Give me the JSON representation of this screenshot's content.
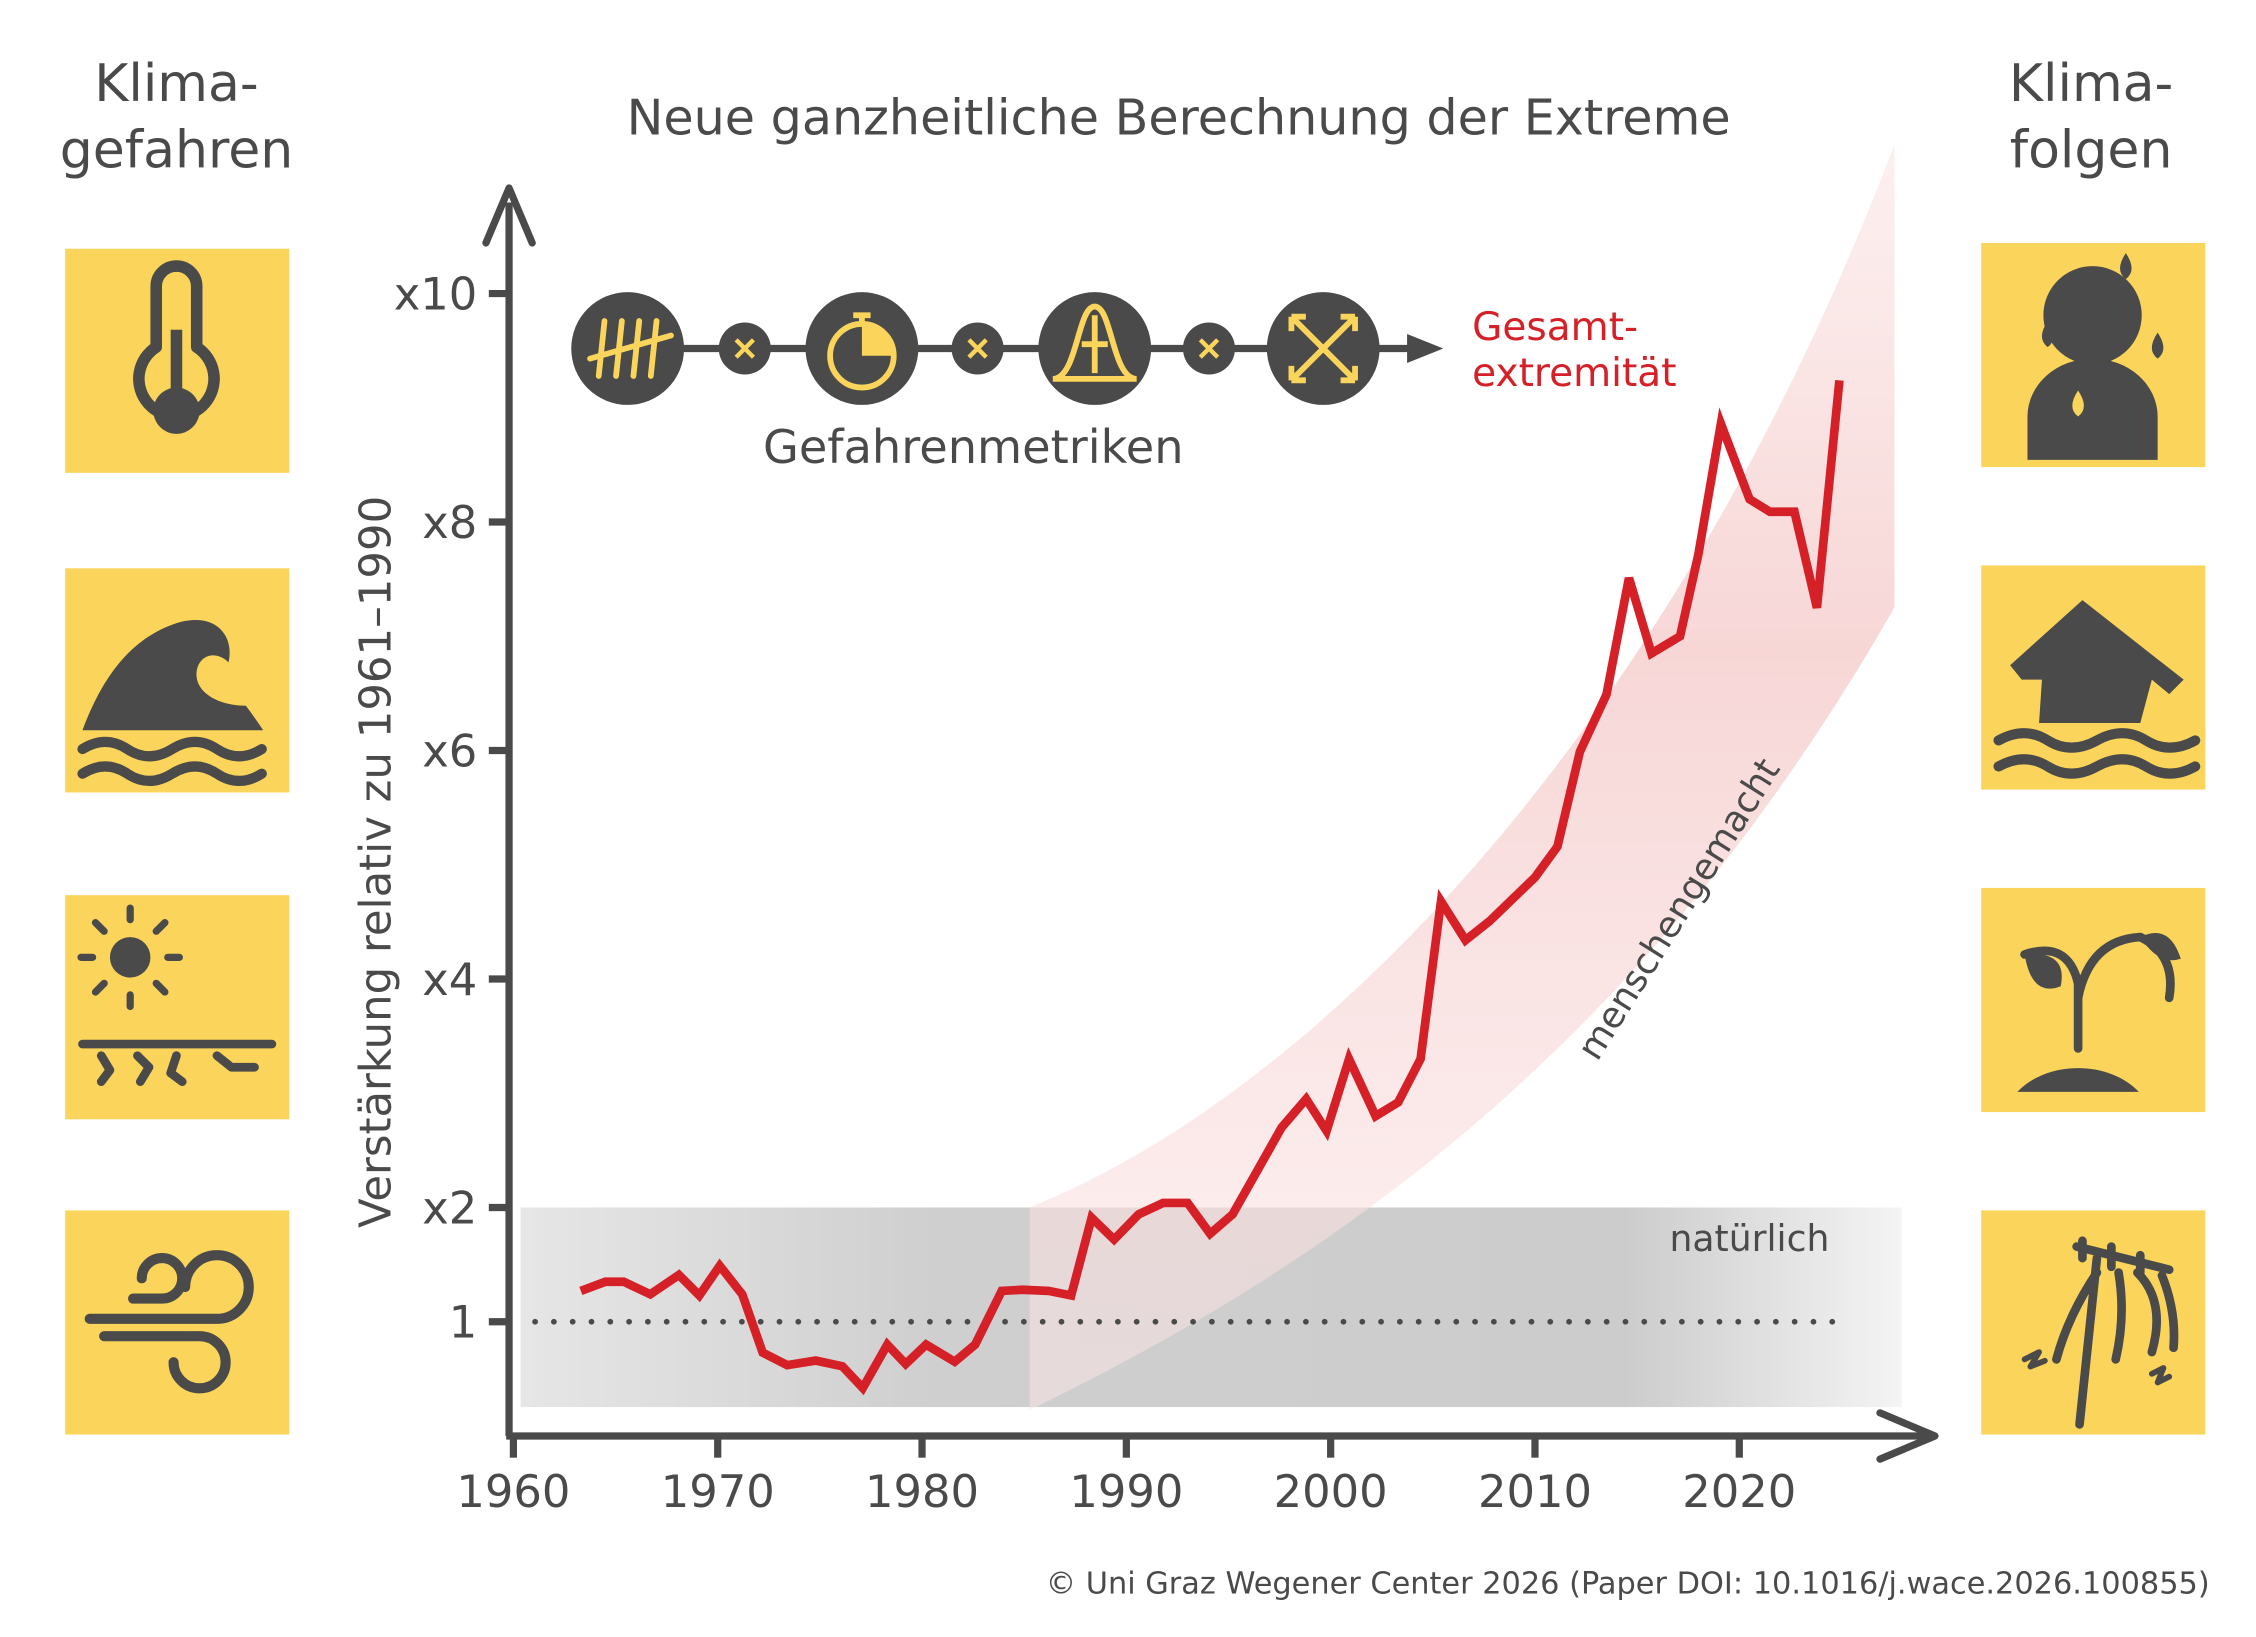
{
  "header": {
    "left_title": [
      "Klima-",
      "gefahren"
    ],
    "right_title": [
      "Klima-",
      "folgen"
    ]
  },
  "chart_data": {
    "type": "line",
    "title": "Neue ganzheitliche Berechnung der Extreme",
    "y_label": "Verstärkung relativ zu 1961–1990",
    "metrics_label": "Gefahrenmetriken",
    "result_label": [
      "Gesamt-",
      "extremität"
    ],
    "band_labels": {
      "natural": "natürlich",
      "human": "menschengemacht"
    },
    "x": [
      1963.3,
      1964.5,
      1965.4,
      1966.7,
      1968.1,
      1969.1,
      1970.1,
      1971.2,
      1972.2,
      1973.4,
      1974.8,
      1976.1,
      1977.1,
      1978.3,
      1979.2,
      1980.2,
      1981.6,
      1982.6,
      1983.9,
      1984.9,
      1986.2,
      1987.3,
      1988.3,
      1989.4,
      1990.6,
      1991.8,
      1993.0,
      1994.1,
      1995.2,
      1996.4,
      1997.6,
      1998.8,
      1999.8,
      2000.9,
      2002.2,
      2003.3,
      2004.4,
      2005.4,
      2006.6,
      2007.8,
      2008.9,
      2010.0,
      2011.1,
      2012.2,
      2013.5,
      2014.6,
      2015.7,
      2017.1,
      2018.0,
      2019.1,
      2020.5,
      2021.5,
      2022.7,
      2023.8,
      2024.9
    ],
    "series": [
      {
        "color": "#d62027",
        "values": [
          1.27,
          1.35,
          1.35,
          1.24,
          1.41,
          1.23,
          1.49,
          1.24,
          0.73,
          0.62,
          0.66,
          0.61,
          0.42,
          0.8,
          0.63,
          0.8,
          0.65,
          0.8,
          1.27,
          1.28,
          1.27,
          1.23,
          1.91,
          1.72,
          1.94,
          2.04,
          2.04,
          1.77,
          1.94,
          2.32,
          2.7,
          2.95,
          2.67,
          3.3,
          2.8,
          2.92,
          3.3,
          4.68,
          4.34,
          4.51,
          4.7,
          4.89,
          5.16,
          5.99,
          6.49,
          7.51,
          6.85,
          7.0,
          7.72,
          8.86,
          8.2,
          8.09,
          8.09,
          7.25,
          9.24
        ]
      }
    ],
    "xlim": [
      1960,
      2030
    ],
    "ylim": [
      0,
      10.5
    ],
    "xticks": [
      1960,
      1970,
      1980,
      1990,
      2000,
      2010,
      2020
    ],
    "yticks": [
      1,
      {
        "value": 2,
        "label": "x2"
      },
      {
        "value": 4,
        "label": "x4"
      },
      {
        "value": 6,
        "label": "x6"
      },
      {
        "value": 8,
        "label": "x8"
      },
      {
        "value": 10,
        "label": "x10"
      }
    ],
    "reference_line": 1
  },
  "footer": {
    "credit": "© Uni Graz Wegener Center 2026 (Paper DOI: 10.1016/j.wace.2026.100855)"
  }
}
